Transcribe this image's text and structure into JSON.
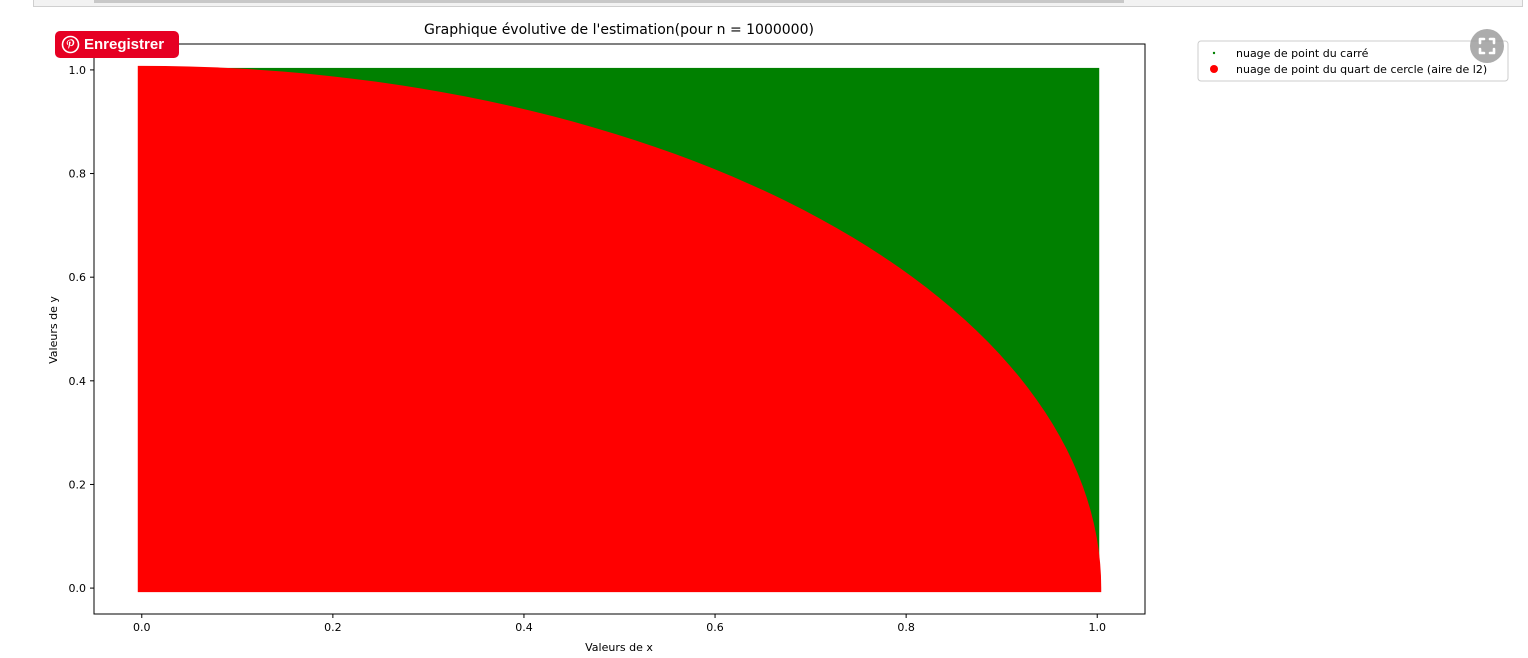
{
  "save_button": {
    "label": "Enregistrer"
  },
  "expand_button": {
    "icon": "expand-icon"
  },
  "colors": {
    "square": "#008000",
    "circle": "#ff0000",
    "save_bg": "#e60023"
  },
  "chart_data": {
    "type": "scatter",
    "title": "Graphique évolutive de l'estimation(pour n = 1000000)",
    "xlabel": "Valeurs de x",
    "ylabel": "Valeurs de y",
    "xlim": [
      -0.05,
      1.05
    ],
    "ylim": [
      -0.05,
      1.05
    ],
    "xticks": [
      0.0,
      0.2,
      0.4,
      0.6,
      0.8,
      1.0
    ],
    "yticks": [
      0.0,
      0.2,
      0.4,
      0.6,
      0.8,
      1.0
    ],
    "xtick_labels": [
      "0.0",
      "0.2",
      "0.4",
      "0.6",
      "0.8",
      "1.0"
    ],
    "ytick_labels": [
      "0.0",
      "0.2",
      "0.4",
      "0.6",
      "0.8",
      "1.0"
    ],
    "legend_position": "outside-top-right",
    "grid": false,
    "series": [
      {
        "name": "nuage de point du carré",
        "color": "#008000",
        "marker": "small-dot",
        "region": "unit square, 0 ≤ x ≤ 1, 0 ≤ y ≤ 1",
        "x_range": [
          0,
          1
        ],
        "y_range": [
          0,
          1
        ]
      },
      {
        "name": "nuage de point du quart de cercle (aire de l2)",
        "color": "#ff0000",
        "marker": "large-dot",
        "region": "quarter circle, x² + y² ≤ 1",
        "x_range": [
          0,
          1
        ],
        "y_range": [
          0,
          1
        ]
      }
    ]
  }
}
